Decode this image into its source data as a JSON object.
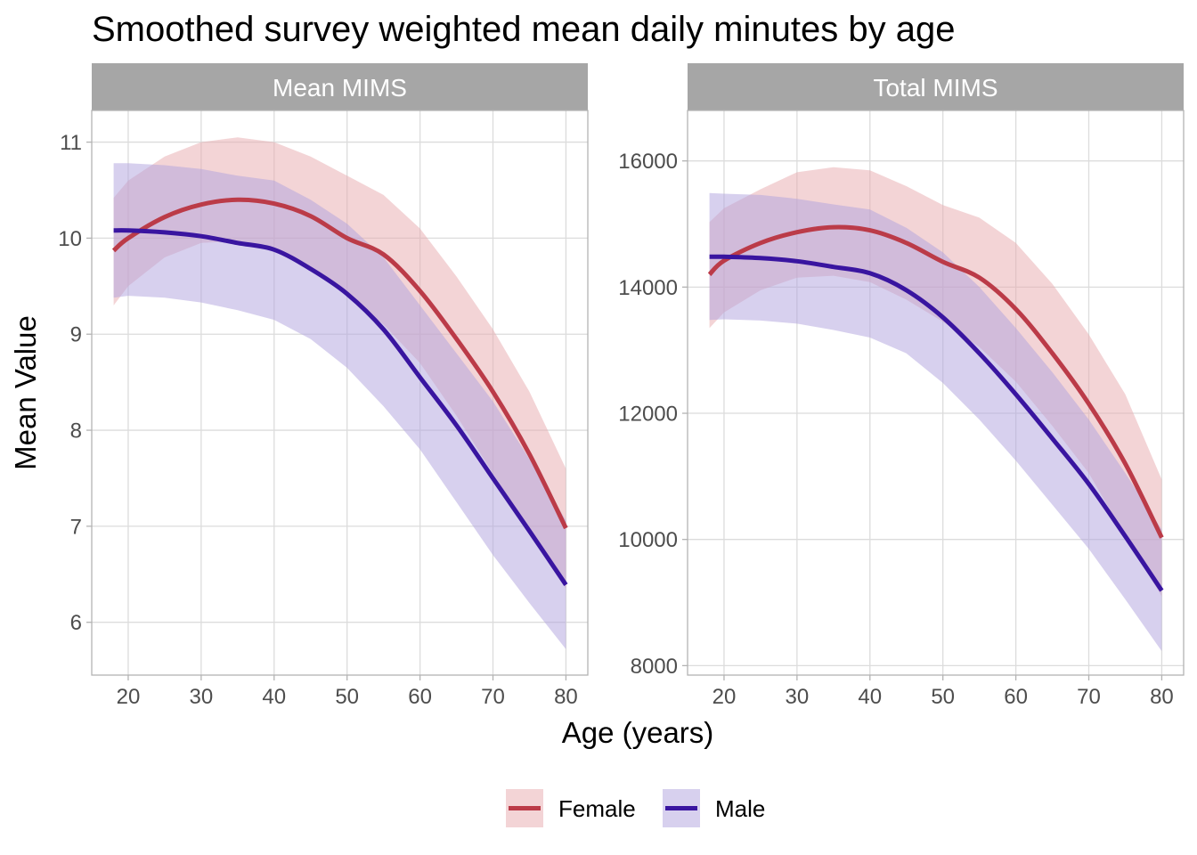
{
  "chart_data": {
    "type": "line",
    "title": "Smoothed survey weighted mean daily minutes by age",
    "xlabel": "Age (years)",
    "ylabel": "Mean Value",
    "x_ticks": [
      20,
      30,
      40,
      50,
      60,
      70,
      80
    ],
    "x_ticks_text": [
      "20",
      "30",
      "40",
      "50",
      "60",
      "70",
      "80"
    ],
    "xlim": [
      15,
      83
    ],
    "colors": {
      "female_line": "#BB3B48",
      "male_line": "#3915A0",
      "female_band": "#E8A9AE",
      "male_band": "#AFA2DE",
      "strip": "#A6A6A6",
      "grid": "#DCDCDC",
      "panel_border": "#B3B3B3"
    },
    "legend": [
      {
        "key": "female",
        "label": "Female"
      },
      {
        "key": "male",
        "label": "Male"
      }
    ],
    "panels": [
      {
        "strip": "Mean MIMS",
        "ylim": [
          5.45,
          11.33
        ],
        "y_ticks": [
          6,
          7,
          8,
          9,
          10,
          11
        ],
        "y_ticks_text": [
          "6",
          "7",
          "8",
          "9",
          "10",
          "11"
        ],
        "x": [
          18,
          20,
          25,
          30,
          35,
          40,
          45,
          50,
          55,
          60,
          65,
          70,
          75,
          80
        ],
        "series": [
          {
            "name": "Female",
            "key": "female",
            "values": [
              9.87,
              10.0,
              10.22,
              10.35,
              10.4,
              10.36,
              10.23,
              10.0,
              9.83,
              9.45,
              8.95,
              8.4,
              7.75,
              6.98
            ],
            "lower": [
              9.3,
              9.5,
              9.8,
              9.95,
              9.97,
              9.9,
              9.7,
              9.4,
              9.1,
              8.7,
              8.15,
              7.55,
              6.95,
              6.35
            ],
            "upper": [
              10.42,
              10.6,
              10.85,
              11.0,
              11.05,
              11.0,
              10.85,
              10.65,
              10.45,
              10.1,
              9.6,
              9.05,
              8.4,
              7.6
            ]
          },
          {
            "name": "Male",
            "key": "male",
            "values": [
              10.08,
              10.08,
              10.06,
              10.02,
              9.95,
              9.88,
              9.68,
              9.42,
              9.05,
              8.55,
              8.05,
              7.5,
              6.95,
              6.39
            ],
            "lower": [
              9.38,
              9.4,
              9.38,
              9.33,
              9.25,
              9.15,
              8.95,
              8.65,
              8.25,
              7.8,
              7.25,
              6.7,
              6.2,
              5.72
            ],
            "upper": [
              10.78,
              10.78,
              10.76,
              10.72,
              10.65,
              10.6,
              10.4,
              10.15,
              9.8,
              9.3,
              8.8,
              8.3,
              7.7,
              7.06
            ]
          }
        ]
      },
      {
        "strip": "Total MIMS",
        "ylim": [
          7850,
          16800
        ],
        "y_ticks": [
          8000,
          10000,
          12000,
          14000,
          16000
        ],
        "y_ticks_text": [
          "8000",
          "10000",
          "12000",
          "14000",
          "16000"
        ],
        "x": [
          18,
          20,
          25,
          30,
          35,
          40,
          45,
          50,
          55,
          60,
          65,
          70,
          75,
          80
        ],
        "series": [
          {
            "name": "Female",
            "key": "female",
            "values": [
              14200,
              14420,
              14700,
              14870,
              14950,
              14900,
              14700,
              14400,
              14150,
              13650,
              12950,
              12150,
              11200,
              10030
            ],
            "lower": [
              13350,
              13600,
              13950,
              14150,
              14180,
              14080,
              13800,
              13450,
              13050,
              12500,
              11800,
              11050,
              10050,
              9100
            ],
            "upper": [
              15030,
              15250,
              15550,
              15820,
              15900,
              15850,
              15600,
              15300,
              15100,
              14700,
              14050,
              13250,
              12300,
              10950
            ]
          },
          {
            "name": "Male",
            "key": "male",
            "values": [
              14480,
              14480,
              14460,
              14410,
              14320,
              14220,
              13950,
              13520,
              12950,
              12300,
              11600,
              10880,
              10050,
              9190
            ],
            "lower": [
              13480,
              13490,
              13470,
              13420,
              13320,
              13200,
              12950,
              12480,
              11900,
              11250,
              10550,
              9850,
              9050,
              8230
            ],
            "upper": [
              15490,
              15480,
              15460,
              15400,
              15310,
              15230,
              14940,
              14550,
              14000,
              13350,
              12650,
              11900,
              11050,
              10160
            ]
          }
        ]
      }
    ]
  }
}
